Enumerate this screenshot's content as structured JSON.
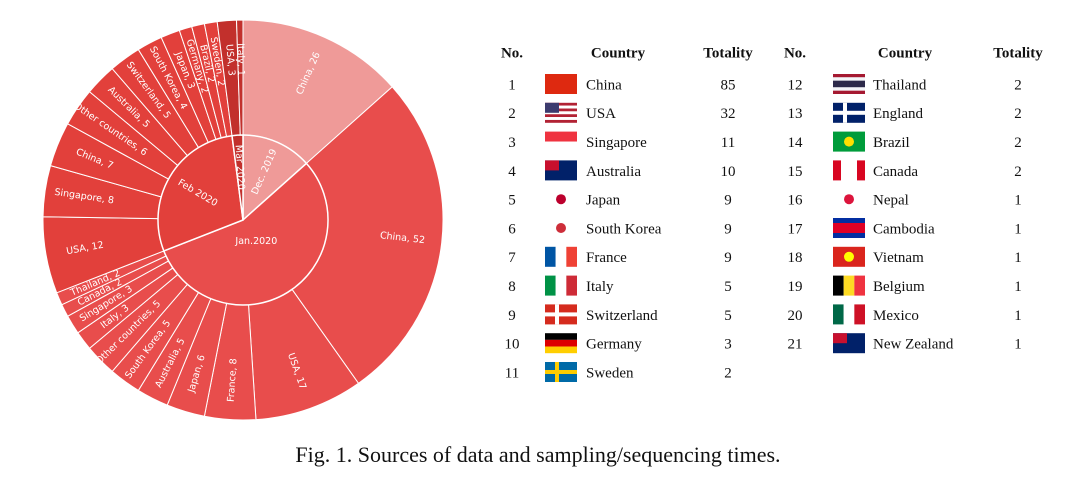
{
  "chart_data": {
    "type": "sunburst",
    "groups": [
      {
        "name": "Dec. 2019",
        "color": "#ef9a98",
        "children": [
          {
            "name": "China",
            "value": 26,
            "label": "China, 26"
          }
        ]
      },
      {
        "name": "Jan.2020",
        "color": "#e84d4c",
        "children": [
          {
            "name": "China",
            "value": 52,
            "label": "China, 52"
          },
          {
            "name": "USA",
            "value": 17,
            "label": "USA, 17"
          },
          {
            "name": "France",
            "value": 8,
            "label": "France, 8"
          },
          {
            "name": "Japan",
            "value": 6,
            "label": "Japan, 6"
          },
          {
            "name": "Australia",
            "value": 5,
            "label": "Australia, 5"
          },
          {
            "name": "South Korea",
            "value": 5,
            "label": "South Korea, 5"
          },
          {
            "name": "Other countries",
            "value": 5,
            "label": "Other countries, 5"
          },
          {
            "name": "Italy",
            "value": 3,
            "label": "Italy, 3"
          },
          {
            "name": "Singapore",
            "value": 3,
            "label": "Singapore, 3"
          },
          {
            "name": "Canada",
            "value": 2,
            "label": "Canada, 2"
          },
          {
            "name": "Thailand",
            "value": 2,
            "label": "Thailand, 2"
          }
        ]
      },
      {
        "name": "Feb 2020",
        "color": "#e2403b",
        "children": [
          {
            "name": "USA",
            "value": 12,
            "label": "USA, 12"
          },
          {
            "name": "Singapore",
            "value": 8,
            "label": "Singapore, 8"
          },
          {
            "name": "China",
            "value": 7,
            "label": "China, 7"
          },
          {
            "name": "Other countries",
            "value": 6,
            "label": "Other countries, 6"
          },
          {
            "name": "Australia",
            "value": 5,
            "label": "Australia, 5"
          },
          {
            "name": "Switzerland",
            "value": 5,
            "label": "Switzerland, 5"
          },
          {
            "name": "South Korea",
            "value": 4,
            "label": "South Korea, 4"
          },
          {
            "name": "Japan",
            "value": 3,
            "label": "Japan, 3"
          },
          {
            "name": "Germany",
            "value": 2,
            "label": "Germany, 2"
          },
          {
            "name": "Brazil",
            "value": 2,
            "label": "Brazil, 2"
          },
          {
            "name": "Sweden",
            "value": 2,
            "label": "Sweden, 2"
          }
        ]
      },
      {
        "name": "Mar 2020",
        "color": "#c2302c",
        "children": [
          {
            "name": "USA",
            "value": 3,
            "label": "USA, 3"
          },
          {
            "name": "Italy",
            "value": 1,
            "label": "Italy, 1"
          }
        ]
      }
    ]
  },
  "table": {
    "columns": [
      "No.",
      "Country",
      "Totality"
    ],
    "rows": [
      [
        1,
        "China",
        85
      ],
      [
        2,
        "USA",
        32
      ],
      [
        3,
        "Singapore",
        11
      ],
      [
        4,
        "Australia",
        10
      ],
      [
        5,
        "Japan",
        9
      ],
      [
        6,
        "South Korea",
        9
      ],
      [
        7,
        "France",
        9
      ],
      [
        8,
        "Italy",
        5
      ],
      [
        9,
        "Switzerland",
        5
      ],
      [
        10,
        "Germany",
        3
      ],
      [
        11,
        "Sweden",
        2
      ],
      [
        12,
        "Thailand",
        2
      ],
      [
        13,
        "England",
        2
      ],
      [
        14,
        "Brazil",
        2
      ],
      [
        15,
        "Canada",
        2
      ],
      [
        16,
        "Nepal",
        1
      ],
      [
        17,
        "Cambodia",
        1
      ],
      [
        18,
        "Vietnam",
        1
      ],
      [
        19,
        "Belgium",
        1
      ],
      [
        20,
        "Mexico",
        1
      ],
      [
        21,
        "New Zealand",
        1
      ]
    ]
  },
  "caption": "Fig. 1. Sources of data and sampling/sequencing times."
}
